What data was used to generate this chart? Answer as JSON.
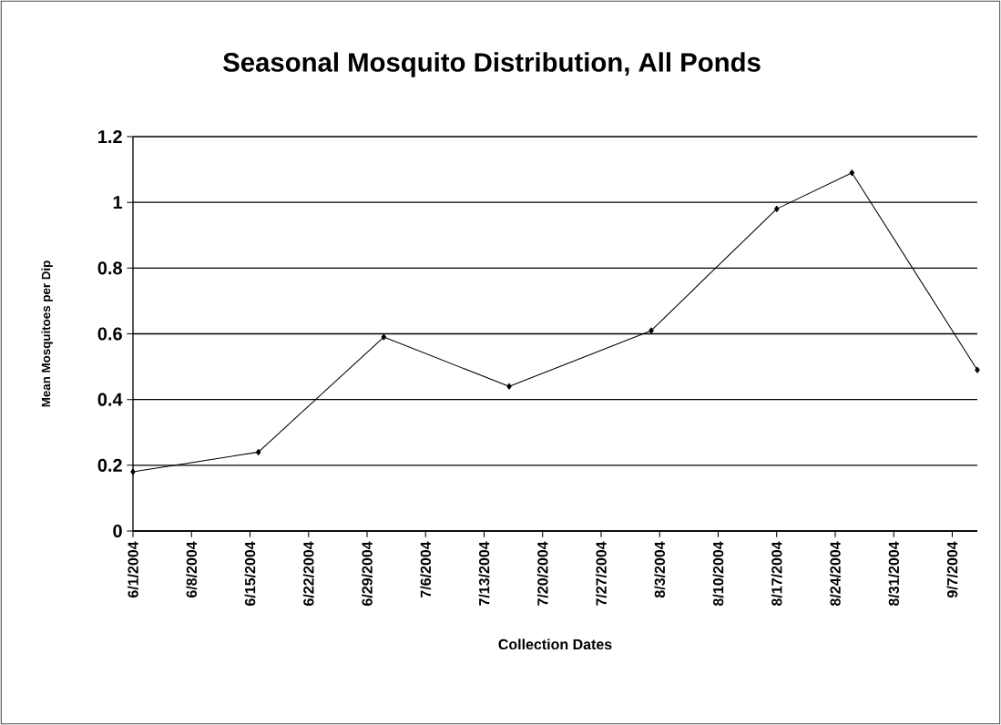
{
  "chart_data": {
    "type": "line",
    "title": "Seasonal Mosquito Distribution, All Ponds",
    "xlabel": "Collection Dates",
    "ylabel": "Mean Mosquitoes per Dip",
    "x": [
      "2004-06-01",
      "2004-06-16",
      "2004-07-01",
      "2004-07-16",
      "2004-08-02",
      "2004-08-17",
      "2004-08-26",
      "2004-09-10"
    ],
    "series": [
      {
        "color": "#000000",
        "values": [
          0.18,
          0.24,
          0.59,
          0.44,
          0.61,
          0.98,
          1.09,
          0.49
        ]
      }
    ],
    "xlim": [
      "2004-06-01",
      "2004-09-10"
    ],
    "xticks": [
      {
        "value": "2004-06-01",
        "label": "6/1/2004"
      },
      {
        "value": "2004-06-08",
        "label": "6/8/2004"
      },
      {
        "value": "2004-06-15",
        "label": "6/15/2004"
      },
      {
        "value": "2004-06-22",
        "label": "6/22/2004"
      },
      {
        "value": "2004-06-29",
        "label": "6/29/2004"
      },
      {
        "value": "2004-07-06",
        "label": "7/6/2004"
      },
      {
        "value": "2004-07-13",
        "label": "7/13/2004"
      },
      {
        "value": "2004-07-20",
        "label": "7/20/2004"
      },
      {
        "value": "2004-07-27",
        "label": "7/27/2004"
      },
      {
        "value": "2004-08-03",
        "label": "8/3/2004"
      },
      {
        "value": "2004-08-10",
        "label": "8/10/2004"
      },
      {
        "value": "2004-08-17",
        "label": "8/17/2004"
      },
      {
        "value": "2004-08-24",
        "label": "8/24/2004"
      },
      {
        "value": "2004-08-31",
        "label": "8/31/2004"
      },
      {
        "value": "2004-09-07",
        "label": "9/7/2004"
      }
    ],
    "ylim": [
      0,
      1.2
    ],
    "yticks": [
      0,
      0.2,
      0.4,
      0.6,
      0.8,
      1,
      1.2
    ],
    "grid": "y",
    "marker": "diamond",
    "line_style": "solid"
  }
}
